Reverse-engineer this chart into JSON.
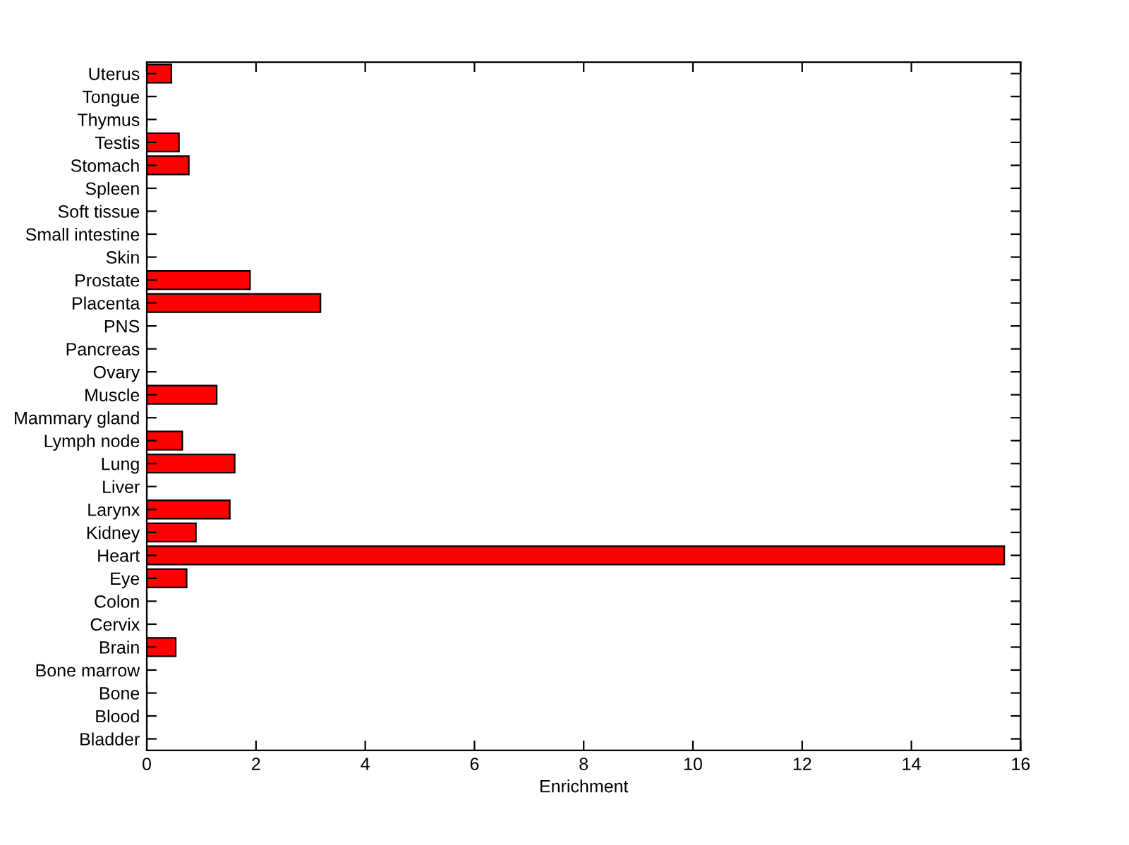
{
  "chart_data": {
    "type": "bar",
    "orientation": "horizontal",
    "xlabel": "Enrichment",
    "categories": [
      "Uterus",
      "Tongue",
      "Thymus",
      "Testis",
      "Stomach",
      "Spleen",
      "Soft tissue",
      "Small intestine",
      "Skin",
      "Prostate",
      "Placenta",
      "PNS",
      "Pancreas",
      "Ovary",
      "Muscle",
      "Mammary gland",
      "Lymph node",
      "Lung",
      "Liver",
      "Larynx",
      "Kidney",
      "Heart",
      "Eye",
      "Colon",
      "Cervix",
      "Brain",
      "Bone marrow",
      "Bone",
      "Blood",
      "Bladder"
    ],
    "values": [
      0.45,
      0,
      0,
      0.59,
      0.77,
      0,
      0,
      0,
      0,
      1.89,
      3.18,
      0,
      0,
      0,
      1.28,
      0,
      0.65,
      1.61,
      0,
      1.52,
      0.9,
      15.7,
      0.73,
      0,
      0,
      0.53,
      0,
      0,
      0,
      0
    ],
    "color": "#ff0000",
    "xlim": [
      0,
      16
    ],
    "xticks": [
      0,
      2,
      4,
      6,
      8,
      10,
      12,
      14,
      16
    ],
    "grid": false
  }
}
